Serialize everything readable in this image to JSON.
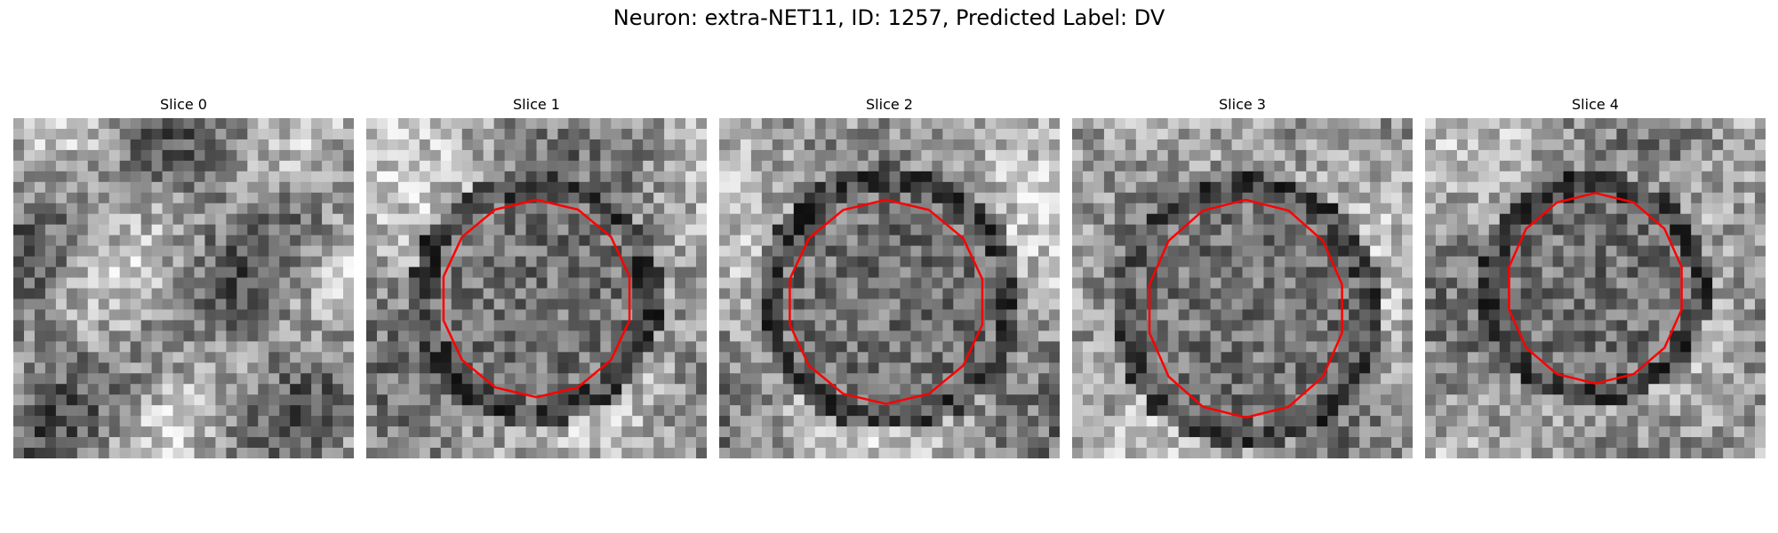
{
  "figure": {
    "title": "Neuron: extra-NET11, ID: 1257, Predicted Label: DV"
  },
  "panels": [
    {
      "title": "Slice 0",
      "contour": false
    },
    {
      "title": "Slice 1",
      "contour": true
    },
    {
      "title": "Slice 2",
      "contour": true
    },
    {
      "title": "Slice 3",
      "contour": true
    },
    {
      "title": "Slice 4",
      "contour": true
    }
  ],
  "colors": {
    "contour": "#ff0000",
    "background": "#ffffff"
  }
}
